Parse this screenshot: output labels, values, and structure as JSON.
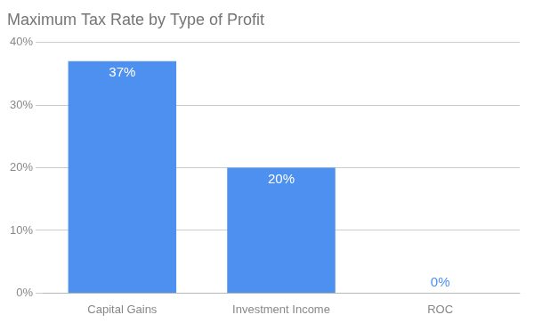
{
  "chart_data": {
    "type": "bar",
    "title": "Maximum Tax Rate by Type of Profit",
    "categories": [
      "Capital Gains",
      "Investment Income",
      "ROC"
    ],
    "values": [
      37,
      20,
      0
    ],
    "value_labels": [
      "37%",
      "20%",
      "0%"
    ],
    "color": "#4d90f0",
    "ylim": [
      0,
      40
    ],
    "yticks": [
      {
        "value": 0,
        "label": "0%"
      },
      {
        "value": 10,
        "label": "10%"
      },
      {
        "value": 20,
        "label": "20%"
      },
      {
        "value": 30,
        "label": "30%"
      },
      {
        "value": 40,
        "label": "40%"
      }
    ],
    "grid": true,
    "data_labels": true
  }
}
